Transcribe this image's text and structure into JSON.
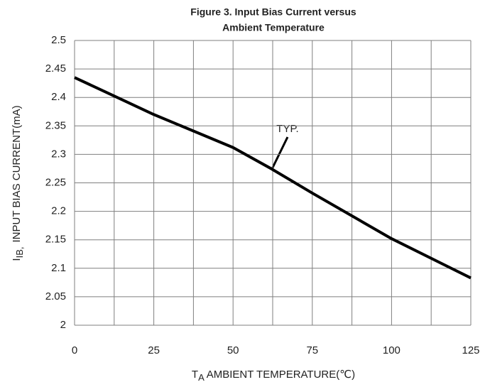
{
  "chart_data": {
    "type": "line",
    "title_lines": [
      "Figure 3. Input Bias Current versus",
      "Ambient Temperature"
    ],
    "ylabel_symbol": "I",
    "ylabel_subscript": "IB,",
    "ylabel": "INPUT  BIAS  CURRENT(mA)",
    "xlabel_symbol": "T",
    "xlabel_subscript": "A",
    "xlabel": "AMBIENT  TEMPERATURE(℃)",
    "annotation": "TYP.",
    "x": [
      0,
      25,
      50,
      62,
      75,
      100,
      125
    ],
    "series": [
      {
        "name": "TYP.",
        "color": "#000000",
        "values": [
          2.435,
          2.37,
          2.312,
          2.275,
          2.232,
          2.152,
          2.083
        ]
      }
    ],
    "xlim": [
      0,
      125
    ],
    "xticks": [
      0,
      25,
      50,
      75,
      100,
      125
    ],
    "xgrid": [
      0,
      12.5,
      25,
      37.5,
      50,
      62.5,
      75,
      87.5,
      100,
      112.5,
      125
    ],
    "ylim": [
      2,
      2.5
    ],
    "yticks": [
      2,
      2.05,
      2.1,
      2.15,
      2.2,
      2.25,
      2.3,
      2.35,
      2.4,
      2.45,
      2.5
    ],
    "grid": true
  }
}
